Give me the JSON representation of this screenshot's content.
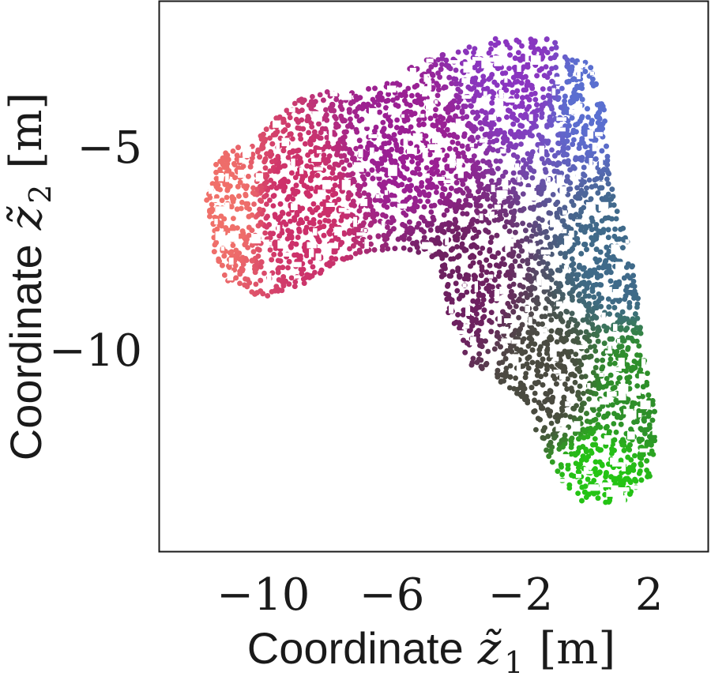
{
  "chart_data": {
    "type": "scatter",
    "xlabel": {
      "word": "Coordinate",
      "symbol": "z̃",
      "subscript": "1",
      "unit": "[m]"
    },
    "ylabel": {
      "word": "Coordinate",
      "symbol": "z̃",
      "subscript": "2",
      "unit": "[m]"
    },
    "xlim": [
      -13.2,
      3.8
    ],
    "ylim": [
      -14.9,
      -1.4
    ],
    "x_ticks": [
      {
        "value": -10,
        "label": "−10"
      },
      {
        "value": -6,
        "label": "−6"
      },
      {
        "value": -2,
        "label": "−2"
      },
      {
        "value": 2,
        "label": "2"
      }
    ],
    "y_ticks": [
      {
        "value": -5,
        "label": "−5"
      },
      {
        "value": -10,
        "label": "−10"
      }
    ],
    "grid": false,
    "legend": "none",
    "colors": {
      "axes": "#1a1a1a",
      "color_stops": [
        "#f0706a",
        "#cc2f6a",
        "#9a1f93",
        "#6a52cf",
        "#3f6a8a",
        "#24c414"
      ]
    },
    "cloud_outline": [
      [
        -0.5,
        -2.5
      ],
      [
        0.2,
        -3.0
      ],
      [
        0.6,
        -4.0
      ],
      [
        0.7,
        -5.0
      ],
      [
        0.9,
        -6.3
      ],
      [
        1.3,
        -7.2
      ],
      [
        1.7,
        -8.7
      ],
      [
        1.8,
        -10.0
      ],
      [
        2.1,
        -11.0
      ],
      [
        2.3,
        -12.2
      ],
      [
        2.0,
        -13.2
      ],
      [
        1.1,
        -13.8
      ],
      [
        -0.2,
        -13.7
      ],
      [
        -0.9,
        -13.0
      ],
      [
        -1.5,
        -12.0
      ],
      [
        -1.9,
        -11.2
      ],
      [
        -2.7,
        -10.7
      ],
      [
        -3.5,
        -10.4
      ],
      [
        -4.2,
        -9.3
      ],
      [
        -4.4,
        -8.3
      ],
      [
        -5.0,
        -7.6
      ],
      [
        -6.0,
        -7.5
      ],
      [
        -7.0,
        -7.6
      ],
      [
        -8.0,
        -8.1
      ],
      [
        -9.0,
        -8.4
      ],
      [
        -10.0,
        -8.7
      ],
      [
        -11.0,
        -8.4
      ],
      [
        -11.5,
        -7.8
      ],
      [
        -11.6,
        -7.0
      ],
      [
        -11.8,
        -6.4
      ],
      [
        -11.6,
        -5.5
      ],
      [
        -11.1,
        -5.0
      ],
      [
        -10.3,
        -4.9
      ],
      [
        -9.3,
        -3.9
      ],
      [
        -8.0,
        -3.6
      ],
      [
        -7.0,
        -3.6
      ],
      [
        -6.0,
        -3.3
      ],
      [
        -5.0,
        -2.8
      ],
      [
        -4.0,
        -2.6
      ],
      [
        -3.0,
        -2.3
      ],
      [
        -1.5,
        -2.2
      ]
    ],
    "gradient_stops": [
      {
        "x": -11.2,
        "y": -6.5,
        "color": "#f0706a"
      },
      {
        "x": -9.0,
        "y": -6.5,
        "color": "#cc2f6a"
      },
      {
        "x": -5.5,
        "y": -5.0,
        "color": "#9a1f93"
      },
      {
        "x": -2.0,
        "y": -3.0,
        "color": "#8a35c0"
      },
      {
        "x": 0.2,
        "y": -3.5,
        "color": "#5a6fd0"
      },
      {
        "x": -4.0,
        "y": -8.5,
        "color": "#6d2060"
      },
      {
        "x": 1.2,
        "y": -7.8,
        "color": "#3f6a8a"
      },
      {
        "x": -1.2,
        "y": -10.8,
        "color": "#4a4a40"
      },
      {
        "x": 1.5,
        "y": -11.0,
        "color": "#2e8f2a"
      },
      {
        "x": 0.5,
        "y": -13.2,
        "color": "#24c414"
      }
    ],
    "n_points": 6500
  }
}
